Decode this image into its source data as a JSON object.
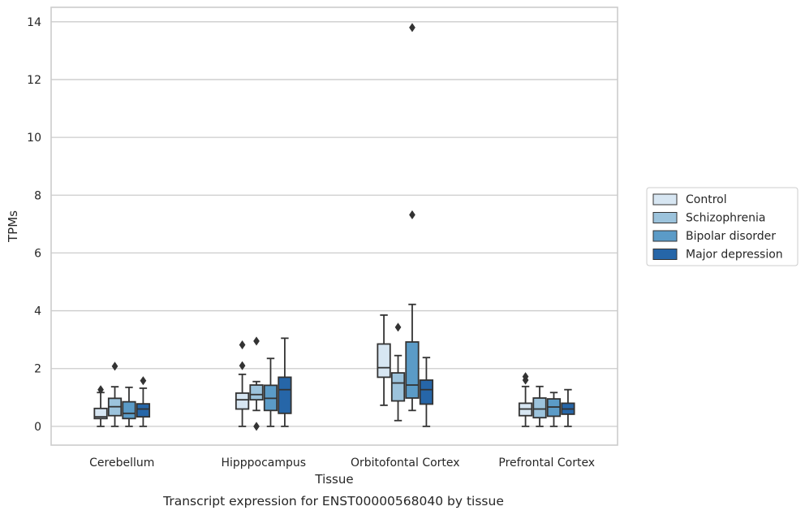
{
  "chart_data": {
    "type": "box",
    "title": "Transcript expression for ENST00000568040 by tissue",
    "xlabel": "Tissue",
    "ylabel": "TPMs",
    "ylim": [
      -0.65,
      14.5
    ],
    "yticks": [
      0,
      2,
      4,
      6,
      8,
      10,
      12,
      14
    ],
    "grid": "horizontal",
    "legend_position": "right",
    "categories": [
      "Cerebellum",
      "Hipppocampus",
      "Orbitofontal Cortex",
      "Prefrontal Cortex"
    ],
    "series": [
      {
        "name": "Control",
        "color": "#d7e6f2",
        "boxes": [
          {
            "whisker_low": 0.0,
            "q1": 0.27,
            "median": 0.33,
            "q3": 0.62,
            "whisker_high": 1.17,
            "outliers": [
              1.27
            ]
          },
          {
            "whisker_low": 0.0,
            "q1": 0.6,
            "median": 0.92,
            "q3": 1.15,
            "whisker_high": 1.8,
            "outliers": [
              2.1,
              2.82
            ]
          },
          {
            "whisker_low": 0.73,
            "q1": 1.7,
            "median": 2.03,
            "q3": 2.85,
            "whisker_high": 3.85,
            "outliers": []
          },
          {
            "whisker_low": 0.0,
            "q1": 0.37,
            "median": 0.6,
            "q3": 0.8,
            "whisker_high": 1.38,
            "outliers": [
              1.6,
              1.72
            ]
          }
        ]
      },
      {
        "name": "Schizophrenia",
        "color": "#9cc3dc",
        "boxes": [
          {
            "whisker_low": 0.0,
            "q1": 0.37,
            "median": 0.68,
            "q3": 0.97,
            "whisker_high": 1.37,
            "outliers": [
              2.08
            ]
          },
          {
            "whisker_low": 0.55,
            "q1": 0.92,
            "median": 1.1,
            "q3": 1.43,
            "whisker_high": 1.55,
            "outliers": [
              0.0,
              2.95
            ]
          },
          {
            "whisker_low": 0.2,
            "q1": 0.88,
            "median": 1.5,
            "q3": 1.85,
            "whisker_high": 2.45,
            "outliers": [
              3.43
            ]
          },
          {
            "whisker_low": 0.0,
            "q1": 0.3,
            "median": 0.6,
            "q3": 0.98,
            "whisker_high": 1.38,
            "outliers": []
          }
        ]
      },
      {
        "name": "Bipolar disorder",
        "color": "#5b9bc7",
        "boxes": [
          {
            "whisker_low": 0.0,
            "q1": 0.27,
            "median": 0.45,
            "q3": 0.85,
            "whisker_high": 1.35,
            "outliers": []
          },
          {
            "whisker_low": 0.0,
            "q1": 0.55,
            "median": 0.97,
            "q3": 1.42,
            "whisker_high": 2.35,
            "outliers": []
          },
          {
            "whisker_low": 0.55,
            "q1": 0.98,
            "median": 1.43,
            "q3": 2.92,
            "whisker_high": 4.22,
            "outliers": [
              7.32,
              13.8
            ]
          },
          {
            "whisker_low": 0.0,
            "q1": 0.35,
            "median": 0.67,
            "q3": 0.95,
            "whisker_high": 1.17,
            "outliers": []
          }
        ]
      },
      {
        "name": "Major depression",
        "color": "#2666a8",
        "boxes": [
          {
            "whisker_low": 0.0,
            "q1": 0.33,
            "median": 0.6,
            "q3": 0.78,
            "whisker_high": 1.32,
            "outliers": [
              1.58
            ]
          },
          {
            "whisker_low": 0.0,
            "q1": 0.45,
            "median": 1.27,
            "q3": 1.7,
            "whisker_high": 3.05,
            "outliers": []
          },
          {
            "whisker_low": 0.0,
            "q1": 0.77,
            "median": 1.27,
            "q3": 1.6,
            "whisker_high": 2.38,
            "outliers": []
          },
          {
            "whisker_low": 0.0,
            "q1": 0.42,
            "median": 0.6,
            "q3": 0.8,
            "whisker_high": 1.27,
            "outliers": []
          }
        ]
      }
    ]
  }
}
